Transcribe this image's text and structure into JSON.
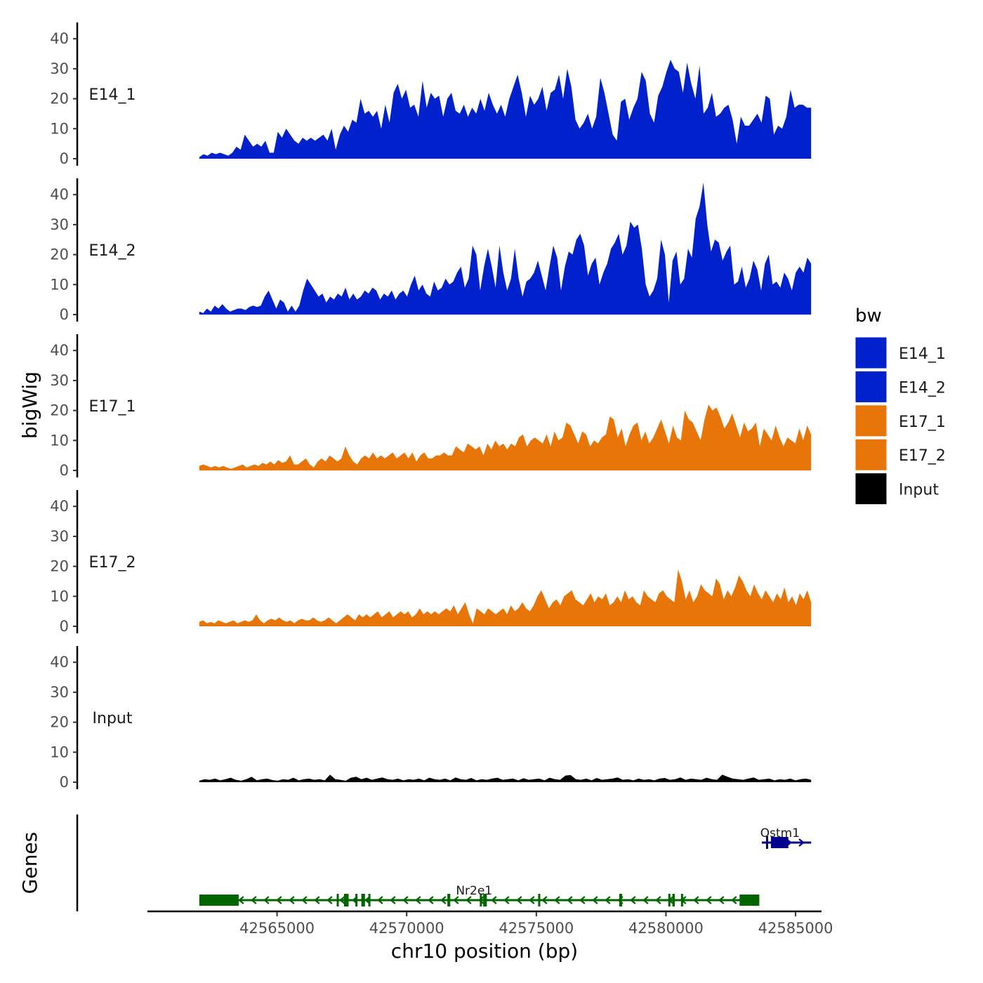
{
  "chart_data": {
    "type": "area",
    "chromosome": "chr10",
    "xlabel": "chr10 position (bp)",
    "ylabel": "bigWig",
    "genes_label": "Genes",
    "xlim": [
      42560000,
      42586000
    ],
    "data_range": [
      42562000,
      42585600
    ],
    "x_ticks": [
      {
        "value": 42565000,
        "label": "42565000"
      },
      {
        "value": 42570000,
        "label": "42570000"
      },
      {
        "value": 42575000,
        "label": "42575000"
      },
      {
        "value": 42580000,
        "label": "42580000"
      },
      {
        "value": 42585000,
        "label": "42585000"
      }
    ],
    "ylim": [
      0,
      45
    ],
    "y_ticks": [
      {
        "value": 0,
        "label": "0"
      },
      {
        "value": 10,
        "label": "10"
      },
      {
        "value": 20,
        "label": "20"
      },
      {
        "value": 30,
        "label": "30"
      },
      {
        "value": 40,
        "label": "40"
      }
    ],
    "legend": {
      "title": "bw",
      "position": "right",
      "entries": [
        {
          "label": "E14_1",
          "color": "#0021CC"
        },
        {
          "label": "E14_2",
          "color": "#0021CC"
        },
        {
          "label": "E17_1",
          "color": "#E87508"
        },
        {
          "label": "E17_2",
          "color": "#E87508"
        },
        {
          "label": "Input",
          "color": "#000000"
        }
      ]
    },
    "series": [
      {
        "name": "E14_1",
        "color": "#0021CC",
        "values": [
          0.5,
          1.5,
          1,
          2,
          1.5,
          2,
          1.5,
          1,
          2,
          4,
          3,
          8,
          6,
          4,
          5,
          4,
          6,
          2,
          2,
          9,
          7,
          10,
          8,
          6,
          5,
          7,
          6,
          7,
          6,
          7,
          8,
          6,
          10,
          3,
          8,
          11,
          9,
          13,
          12,
          20,
          15,
          16,
          14,
          16,
          10,
          18,
          12,
          22,
          25,
          20,
          23,
          17,
          18,
          14,
          26,
          17,
          22,
          20,
          21,
          14,
          20,
          22,
          16,
          15,
          18,
          14,
          17,
          15,
          20,
          16,
          22,
          18,
          15,
          18,
          14,
          20,
          24,
          28,
          22,
          14,
          21,
          18,
          20,
          24,
          16,
          22,
          23,
          28,
          20,
          30,
          24,
          13,
          10,
          12,
          15,
          10,
          14,
          27,
          22,
          15,
          8,
          6,
          19,
          20,
          13,
          17,
          20,
          29,
          26,
          15,
          12,
          21,
          24,
          29,
          33,
          30,
          29,
          22,
          32,
          25,
          20,
          31,
          15,
          17,
          22,
          14,
          15,
          17,
          18,
          13,
          5,
          14,
          11,
          11,
          13,
          15,
          12,
          21,
          20,
          8,
          11,
          10,
          14,
          23,
          17,
          18,
          18,
          17,
          17
        ]
      },
      {
        "name": "E14_2",
        "color": "#0021CC",
        "values": [
          1,
          0.5,
          2,
          1,
          3,
          2,
          3.5,
          2,
          1,
          1.5,
          2,
          2,
          1.5,
          2.5,
          3,
          2.5,
          3,
          6,
          8,
          5,
          2,
          5,
          4,
          1,
          3,
          1,
          3,
          8,
          12,
          10,
          8,
          6,
          7,
          4,
          6,
          5,
          7,
          6,
          9,
          5,
          7,
          5,
          6,
          8,
          7,
          9,
          8,
          5,
          7,
          6,
          8,
          5,
          7,
          8,
          6,
          10,
          13,
          8,
          10,
          7,
          6,
          11,
          8,
          9,
          12,
          10,
          11,
          14,
          16,
          9,
          12,
          23,
          20,
          8,
          16,
          22,
          16,
          9,
          23,
          14,
          8,
          12,
          22,
          12,
          6,
          11,
          12,
          14,
          18,
          13,
          8,
          16,
          23,
          19,
          8,
          16,
          21,
          20,
          25,
          27,
          23,
          13,
          17,
          19,
          10,
          14,
          17,
          22,
          24,
          27,
          20,
          23,
          31,
          29,
          30,
          22,
          10,
          6,
          8,
          12,
          25,
          20,
          4,
          18,
          21,
          10,
          12,
          22,
          19,
          32,
          36,
          44,
          30,
          21,
          25,
          24,
          18,
          21,
          23,
          10,
          11,
          16,
          9,
          12,
          18,
          15,
          8,
          17,
          20,
          10,
          11,
          9,
          14,
          12,
          8,
          14,
          16,
          14,
          19,
          17
        ]
      },
      {
        "name": "E17_1",
        "color": "#E87508",
        "values": [
          1.5,
          2,
          1.5,
          1,
          1.5,
          1,
          1.5,
          1,
          0.5,
          1,
          1.5,
          2,
          1,
          1.5,
          2,
          1.5,
          2.5,
          2,
          3,
          2,
          3.5,
          2.5,
          3,
          5,
          2,
          2,
          3,
          4,
          2,
          1,
          3,
          4,
          3,
          5,
          4,
          3,
          4,
          8,
          5,
          3,
          2,
          4,
          5,
          4,
          6,
          4,
          5,
          4,
          5,
          6,
          4,
          5,
          6,
          4,
          6,
          3,
          5,
          6,
          4,
          4,
          5,
          5,
          6,
          5,
          5,
          8,
          7,
          6,
          9,
          8,
          7,
          8,
          5,
          9,
          7,
          10,
          8,
          9,
          7,
          9,
          8,
          11,
          12,
          8,
          10,
          11,
          10,
          9,
          12,
          8,
          13,
          10,
          11,
          16,
          15,
          12,
          9,
          13,
          12,
          8,
          10,
          9,
          11,
          12,
          18,
          17,
          11,
          14,
          8,
          12,
          15,
          16,
          10,
          13,
          9,
          11,
          14,
          17,
          13,
          9,
          15,
          11,
          10,
          20,
          17,
          16,
          13,
          10,
          17,
          22,
          20,
          21,
          18,
          14,
          16,
          19,
          15,
          11,
          16,
          13,
          14,
          16,
          8,
          14,
          12,
          10,
          15,
          11,
          8,
          11,
          10,
          9,
          14,
          10,
          15,
          12
        ]
      },
      {
        "name": "E17_2",
        "color": "#E87508",
        "values": [
          1.5,
          2,
          1,
          1.5,
          1,
          2,
          1.5,
          1,
          1.5,
          2,
          1,
          1.5,
          2,
          1.5,
          2,
          4,
          2,
          1,
          2,
          2.5,
          2,
          3,
          2,
          1.5,
          2,
          1,
          2,
          2.5,
          2,
          2,
          3,
          2,
          1.5,
          2,
          3,
          2,
          1,
          2,
          3,
          4,
          3,
          2,
          4,
          3,
          4,
          3,
          4,
          5,
          3,
          4,
          5,
          3,
          4,
          5,
          4,
          5,
          3,
          4,
          6,
          4,
          5,
          4,
          5,
          4,
          5,
          6,
          5,
          7,
          4,
          6,
          8,
          4,
          1,
          6,
          5,
          4,
          6,
          5,
          4,
          5,
          6,
          4,
          7,
          5,
          6,
          8,
          6,
          5,
          7,
          10,
          12,
          9,
          6,
          8,
          9,
          7,
          10,
          11,
          12,
          9,
          8,
          7,
          9,
          11,
          8,
          10,
          9,
          11,
          7,
          8,
          10,
          8,
          12,
          9,
          10,
          8,
          7,
          12,
          10,
          9,
          8,
          11,
          12,
          10,
          9,
          8,
          19,
          15,
          9,
          12,
          8,
          10,
          14,
          12,
          11,
          10,
          16,
          14,
          9,
          12,
          10,
          13,
          17,
          15,
          12,
          10,
          14,
          11,
          9,
          12,
          10,
          8,
          11,
          9,
          13,
          8,
          10,
          7,
          11,
          9,
          12,
          8
        ]
      },
      {
        "name": "Input",
        "color": "#000000",
        "values": [
          0.5,
          1,
          0.8,
          1.2,
          0.6,
          1,
          1.5,
          0.8,
          0.5,
          1,
          1.8,
          0.6,
          1,
          1.2,
          0.7,
          0.5,
          1,
          0.8,
          1.5,
          0.6,
          1,
          1.2,
          0.8,
          1,
          0.6,
          2.5,
          1,
          0.8,
          0.5,
          1.5,
          1.8,
          1,
          1.5,
          0.8,
          1.2,
          1.6,
          1,
          0.8,
          1.2,
          0.6,
          1,
          0.8,
          1.2,
          0.6,
          1.5,
          1,
          0.8,
          1.2,
          0.6,
          1.6,
          1,
          0.8,
          1.4,
          0.6,
          1,
          0.8,
          1.2,
          1.5,
          0.8,
          1,
          1.2,
          0.6,
          1.3,
          0.8,
          1,
          1.2,
          0.6,
          1.5,
          1,
          0.8,
          2.2,
          2.4,
          1,
          0.8,
          1.2,
          0.6,
          1.4,
          0.8,
          1,
          1.2,
          1.6,
          0.8,
          1,
          0.6,
          1.2,
          0.8,
          1,
          0.6,
          1.2,
          1.4,
          0.8,
          1,
          1.6,
          0.8,
          1.2,
          1,
          0.8,
          1.5,
          1,
          0.8,
          2.5,
          1.8,
          1.2,
          1,
          0.8,
          1.2,
          1.6,
          0.8,
          1,
          1.2,
          0.6,
          1,
          0.8,
          1.2,
          0.6,
          1,
          1.2,
          0.8
        ]
      }
    ],
    "genes": [
      {
        "name": "Nr2e1",
        "strand": "-",
        "start": 42562000,
        "end": 42583600,
        "row": 2,
        "color": "#006400",
        "exons": [
          [
            42562000,
            42563520
          ],
          [
            42567300,
            42567360
          ],
          [
            42567580,
            42567760
          ],
          [
            42568020,
            42568070
          ],
          [
            42568250,
            42568390
          ],
          [
            42568520,
            42568570
          ],
          [
            42571570,
            42571680
          ],
          [
            42572820,
            42572890
          ],
          [
            42572950,
            42573090
          ],
          [
            42575070,
            42575130
          ],
          [
            42578200,
            42578310
          ],
          [
            42580090,
            42580150
          ],
          [
            42580250,
            42580340
          ],
          [
            42580580,
            42580630
          ],
          [
            42582840,
            42583600
          ]
        ]
      },
      {
        "name": "Ostm1",
        "strand": "+",
        "start": 42583700,
        "end": 42585600,
        "row": 1,
        "color": "#00008B",
        "exons": [
          [
            42583860,
            42583920
          ],
          [
            42584050,
            42584720
          ]
        ]
      }
    ]
  }
}
